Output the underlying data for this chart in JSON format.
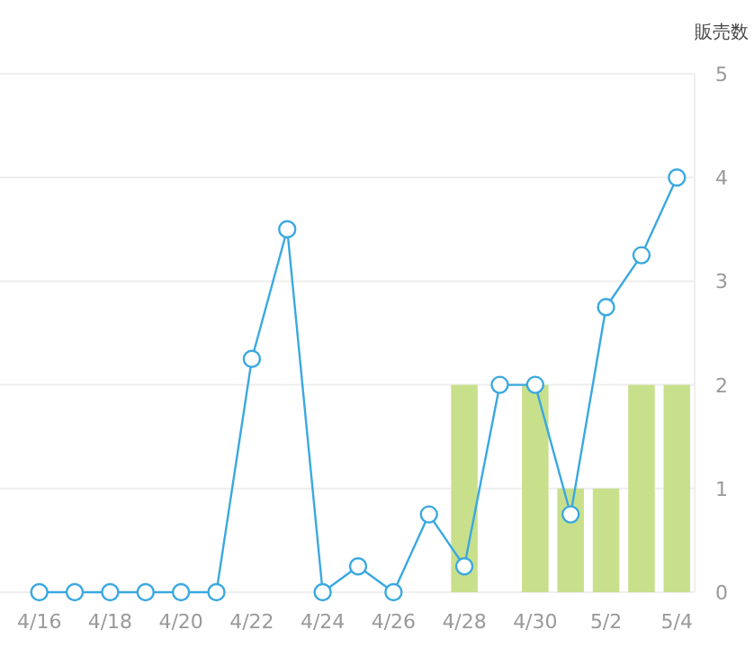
{
  "chart_data": {
    "type": "bar",
    "ylabel": "販売数",
    "categories": [
      "4/16",
      null,
      "4/18",
      null,
      "4/20",
      null,
      "4/22",
      null,
      "4/24",
      null,
      "4/26",
      null,
      "4/28",
      null,
      "4/30",
      null,
      "5/2",
      null,
      "5/4"
    ],
    "series": [
      {
        "color": "#c8e08c",
        "values": [
          null,
          null,
          null,
          null,
          null,
          null,
          null,
          null,
          null,
          null,
          null,
          null,
          2,
          null,
          2,
          1,
          1,
          2,
          2
        ]
      },
      {
        "type": "line",
        "color": "#3aa8e0",
        "values": [
          0,
          0,
          0,
          0,
          0,
          0,
          2.25,
          3.5,
          0,
          0.25,
          0,
          0.75,
          0.25,
          2,
          2,
          0.75,
          2.75,
          3.25,
          4
        ]
      }
    ],
    "marker": "circle",
    "line_style": "solid",
    "ylim": [
      0,
      5
    ],
    "yticks": [
      0,
      1,
      2,
      3,
      4,
      5
    ],
    "grid": "y"
  }
}
